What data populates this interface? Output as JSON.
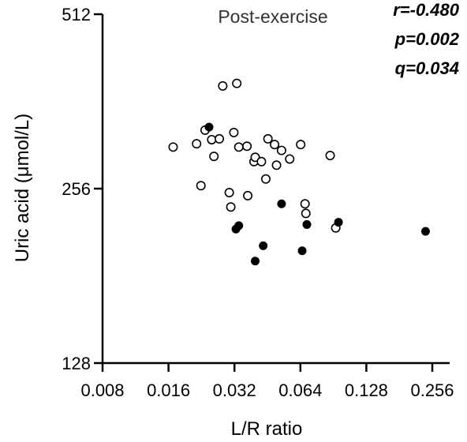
{
  "chart_data": {
    "type": "scatter",
    "title": "Post-exercise",
    "xlabel": "L/R ratio",
    "ylabel": "Uric acid (μmol/L)",
    "x_scale": "log2",
    "y_scale": "log2",
    "xlim": [
      0.008,
      0.256
    ],
    "ylim": [
      128,
      512
    ],
    "x_ticks": [
      "0.008",
      "0.016",
      "0.032",
      "0.064",
      "0.128",
      "0.256"
    ],
    "y_ticks": [
      "128",
      "256",
      "512"
    ],
    "annotations": [
      "r=-0.480",
      "p=0.002",
      "q=0.034"
    ],
    "grid": false,
    "legend": "none",
    "series": [
      {
        "marker": "open-circle",
        "color": "#000000",
        "points": [
          {
            "x": 0.0168,
            "y": 302
          },
          {
            "x": 0.0215,
            "y": 306
          },
          {
            "x": 0.0225,
            "y": 259
          },
          {
            "x": 0.0235,
            "y": 323
          },
          {
            "x": 0.0252,
            "y": 311
          },
          {
            "x": 0.0258,
            "y": 291
          },
          {
            "x": 0.0273,
            "y": 312
          },
          {
            "x": 0.0283,
            "y": 385
          },
          {
            "x": 0.0303,
            "y": 252
          },
          {
            "x": 0.0308,
            "y": 238
          },
          {
            "x": 0.0318,
            "y": 320
          },
          {
            "x": 0.0328,
            "y": 389
          },
          {
            "x": 0.0335,
            "y": 302
          },
          {
            "x": 0.0365,
            "y": 303
          },
          {
            "x": 0.0368,
            "y": 249
          },
          {
            "x": 0.0393,
            "y": 285
          },
          {
            "x": 0.0398,
            "y": 290
          },
          {
            "x": 0.0425,
            "y": 285
          },
          {
            "x": 0.0445,
            "y": 266
          },
          {
            "x": 0.0455,
            "y": 312
          },
          {
            "x": 0.0488,
            "y": 305
          },
          {
            "x": 0.0498,
            "y": 281
          },
          {
            "x": 0.0525,
            "y": 298
          },
          {
            "x": 0.0572,
            "y": 288
          },
          {
            "x": 0.0642,
            "y": 305
          },
          {
            "x": 0.0672,
            "y": 241
          },
          {
            "x": 0.0678,
            "y": 232
          },
          {
            "x": 0.0875,
            "y": 292
          },
          {
            "x": 0.0928,
            "y": 219
          }
        ]
      },
      {
        "marker": "filled-circle",
        "color": "#000000",
        "points": [
          {
            "x": 0.0245,
            "y": 327
          },
          {
            "x": 0.0325,
            "y": 218
          },
          {
            "x": 0.0335,
            "y": 221
          },
          {
            "x": 0.0398,
            "y": 192
          },
          {
            "x": 0.0433,
            "y": 204
          },
          {
            "x": 0.0525,
            "y": 241
          },
          {
            "x": 0.0652,
            "y": 200
          },
          {
            "x": 0.0685,
            "y": 222
          },
          {
            "x": 0.0955,
            "y": 224
          },
          {
            "x": 0.2385,
            "y": 216
          }
        ]
      }
    ]
  }
}
